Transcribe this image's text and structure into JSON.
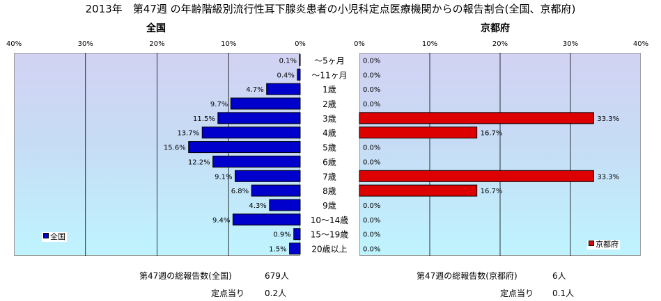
{
  "title": "2013年　第47週 の年齢階級別流行性耳下腺炎患者の小児科定点医療機関からの報告割合(全国、京都府)",
  "chart_data": [
    {
      "type": "bar",
      "orientation": "horizontal",
      "direction": "reversed",
      "title": "全国",
      "xlim": [
        0,
        40
      ],
      "ticks": [
        "40%",
        "30%",
        "20%",
        "10%",
        "0%"
      ],
      "legend": "全国",
      "legend_position": "bottom-left",
      "color": "#0000cc",
      "categories": [
        "～5ヶ月",
        "～11ヶ月",
        "1歳",
        "2歳",
        "3歳",
        "4歳",
        "5歳",
        "6歳",
        "7歳",
        "8歳",
        "9歳",
        "10～14歳",
        "15～19歳",
        "20歳以上"
      ],
      "values": [
        0.1,
        0.4,
        4.7,
        9.7,
        11.5,
        13.7,
        15.6,
        12.2,
        9.1,
        6.8,
        4.3,
        9.4,
        0.9,
        1.5
      ],
      "labels": [
        "0.1%",
        "0.4%",
        "4.7%",
        "9.7%",
        "11.5%",
        "13.7%",
        "15.6%",
        "12.2%",
        "9.1%",
        "6.8%",
        "4.3%",
        "9.4%",
        "0.9%",
        "1.5%"
      ]
    },
    {
      "type": "bar",
      "orientation": "horizontal",
      "title": "京都府",
      "xlim": [
        0,
        40
      ],
      "ticks": [
        "0%",
        "10%",
        "20%",
        "30%",
        "40%"
      ],
      "legend": "京都府",
      "legend_position": "bottom-right",
      "color": "#dd0000",
      "values": [
        0,
        0,
        0,
        0,
        33.3,
        16.7,
        0,
        0,
        33.3,
        16.7,
        0,
        0,
        0,
        0
      ],
      "labels": [
        "0.0%",
        "0.0%",
        "0.0%",
        "0.0%",
        "33.3%",
        "16.7%",
        "0.0%",
        "0.0%",
        "33.3%",
        "16.7%",
        "0.0%",
        "0.0%",
        "0.0%",
        "0.0%"
      ]
    }
  ],
  "summary": {
    "national_total_label": "第47週の総報告数(全国)",
    "national_total_value": "679人",
    "national_per_site_label": "定点当り",
    "national_per_site_value": "0.2人",
    "kyoto_total_label": "第47週の総報告数(京都府)",
    "kyoto_total_value": "6人",
    "kyoto_per_site_label": "定点当り",
    "kyoto_per_site_value": "0.1人"
  }
}
